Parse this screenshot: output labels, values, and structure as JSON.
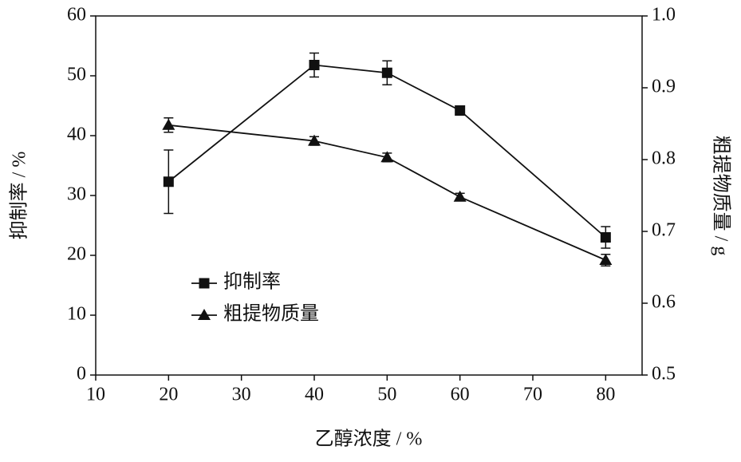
{
  "chart_data": {
    "type": "line",
    "x_label": "乙醇浓度 / %",
    "y_label": "抑制率 / %",
    "y2_label": "粗提物质量 / g",
    "x": [
      20,
      40,
      50,
      60,
      80
    ],
    "series": [
      {
        "name": "抑制率",
        "color": "#111111",
        "marker": "square",
        "values": [
          32.3,
          51.8,
          50.5,
          44.2,
          23.0
        ],
        "errors": [
          5.3,
          2.0,
          2.0,
          0.5,
          1.8
        ]
      },
      {
        "name": "粗提物质量",
        "color": "#111111",
        "marker": "triangle",
        "axis": "y2",
        "values": [
          0.848,
          0.826,
          0.803,
          0.748,
          0.66
        ],
        "errors": [
          0.01,
          0.006,
          0.006,
          0.005,
          0.008
        ]
      }
    ],
    "xlim": [
      10,
      85
    ],
    "xticks": [
      10,
      20,
      30,
      40,
      50,
      60,
      70,
      80
    ],
    "ylim": [
      0,
      60
    ],
    "yticks": [
      0,
      10,
      20,
      30,
      40,
      50,
      60
    ],
    "y2lim": [
      0.5,
      1.0
    ],
    "y2ticks": [
      0.5,
      0.6,
      0.7,
      0.8,
      0.9,
      {
        "value": 1.0,
        "label": "1.0"
      }
    ],
    "legend": "lower left"
  }
}
